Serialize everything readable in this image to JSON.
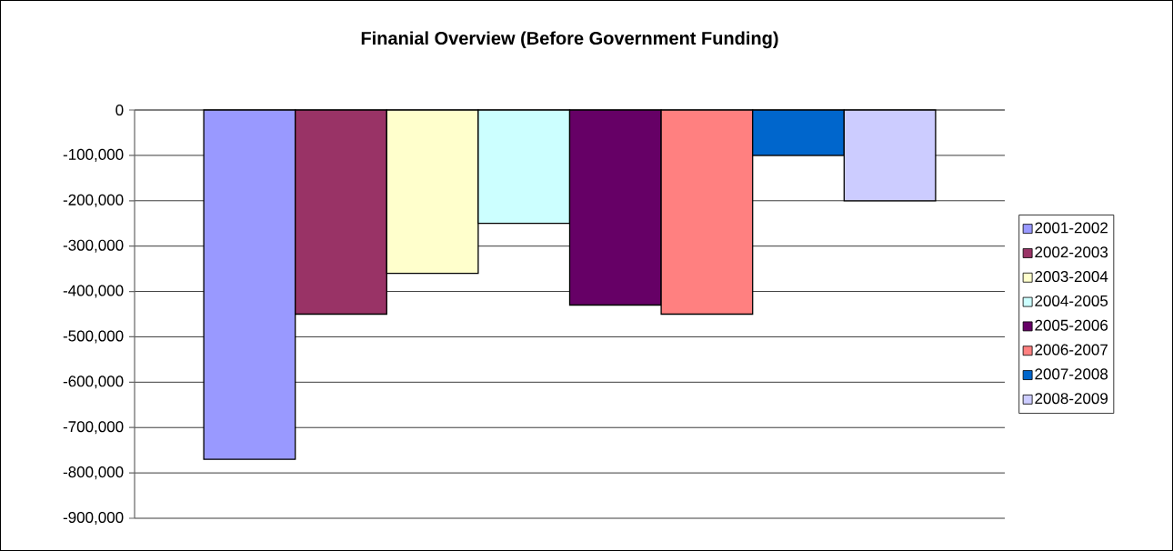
{
  "chart_data": {
    "type": "bar",
    "title": "Finanial Overview (Before Government Funding)",
    "categories": [
      null
    ],
    "series": [
      {
        "name": "2001-2002",
        "color": "#9999ff",
        "values": [
          -770000
        ]
      },
      {
        "name": "2002-2003",
        "color": "#993366",
        "values": [
          -450000
        ]
      },
      {
        "name": "2003-2004",
        "color": "#ffffcc",
        "values": [
          -360000
        ]
      },
      {
        "name": "2004-2005",
        "color": "#ccffff",
        "values": [
          -250000
        ]
      },
      {
        "name": "2005-2006",
        "color": "#660066",
        "values": [
          -430000
        ]
      },
      {
        "name": "2006-2007",
        "color": "#ff8080",
        "values": [
          -450000
        ]
      },
      {
        "name": "2007-2008",
        "color": "#0066cc",
        "values": [
          -100000
        ]
      },
      {
        "name": "2008-2009",
        "color": "#ccccff",
        "values": [
          -200000
        ]
      }
    ],
    "ylim": [
      -900000,
      0
    ],
    "yticks": [
      {
        "value": -900000,
        "label": "-900,000"
      },
      {
        "value": -800000,
        "label": "-800,000"
      },
      {
        "value": -700000,
        "label": "-700,000"
      },
      {
        "value": -600000,
        "label": "-600,000"
      },
      {
        "value": -500000,
        "label": "-500,000"
      },
      {
        "value": -400000,
        "label": "-400,000"
      },
      {
        "value": -300000,
        "label": "-300,000"
      },
      {
        "value": -200000,
        "label": "-200,000"
      },
      {
        "value": -100000,
        "label": "-100,000"
      },
      0
    ],
    "grid": "y",
    "legend": "right",
    "tick_labels": "y"
  }
}
